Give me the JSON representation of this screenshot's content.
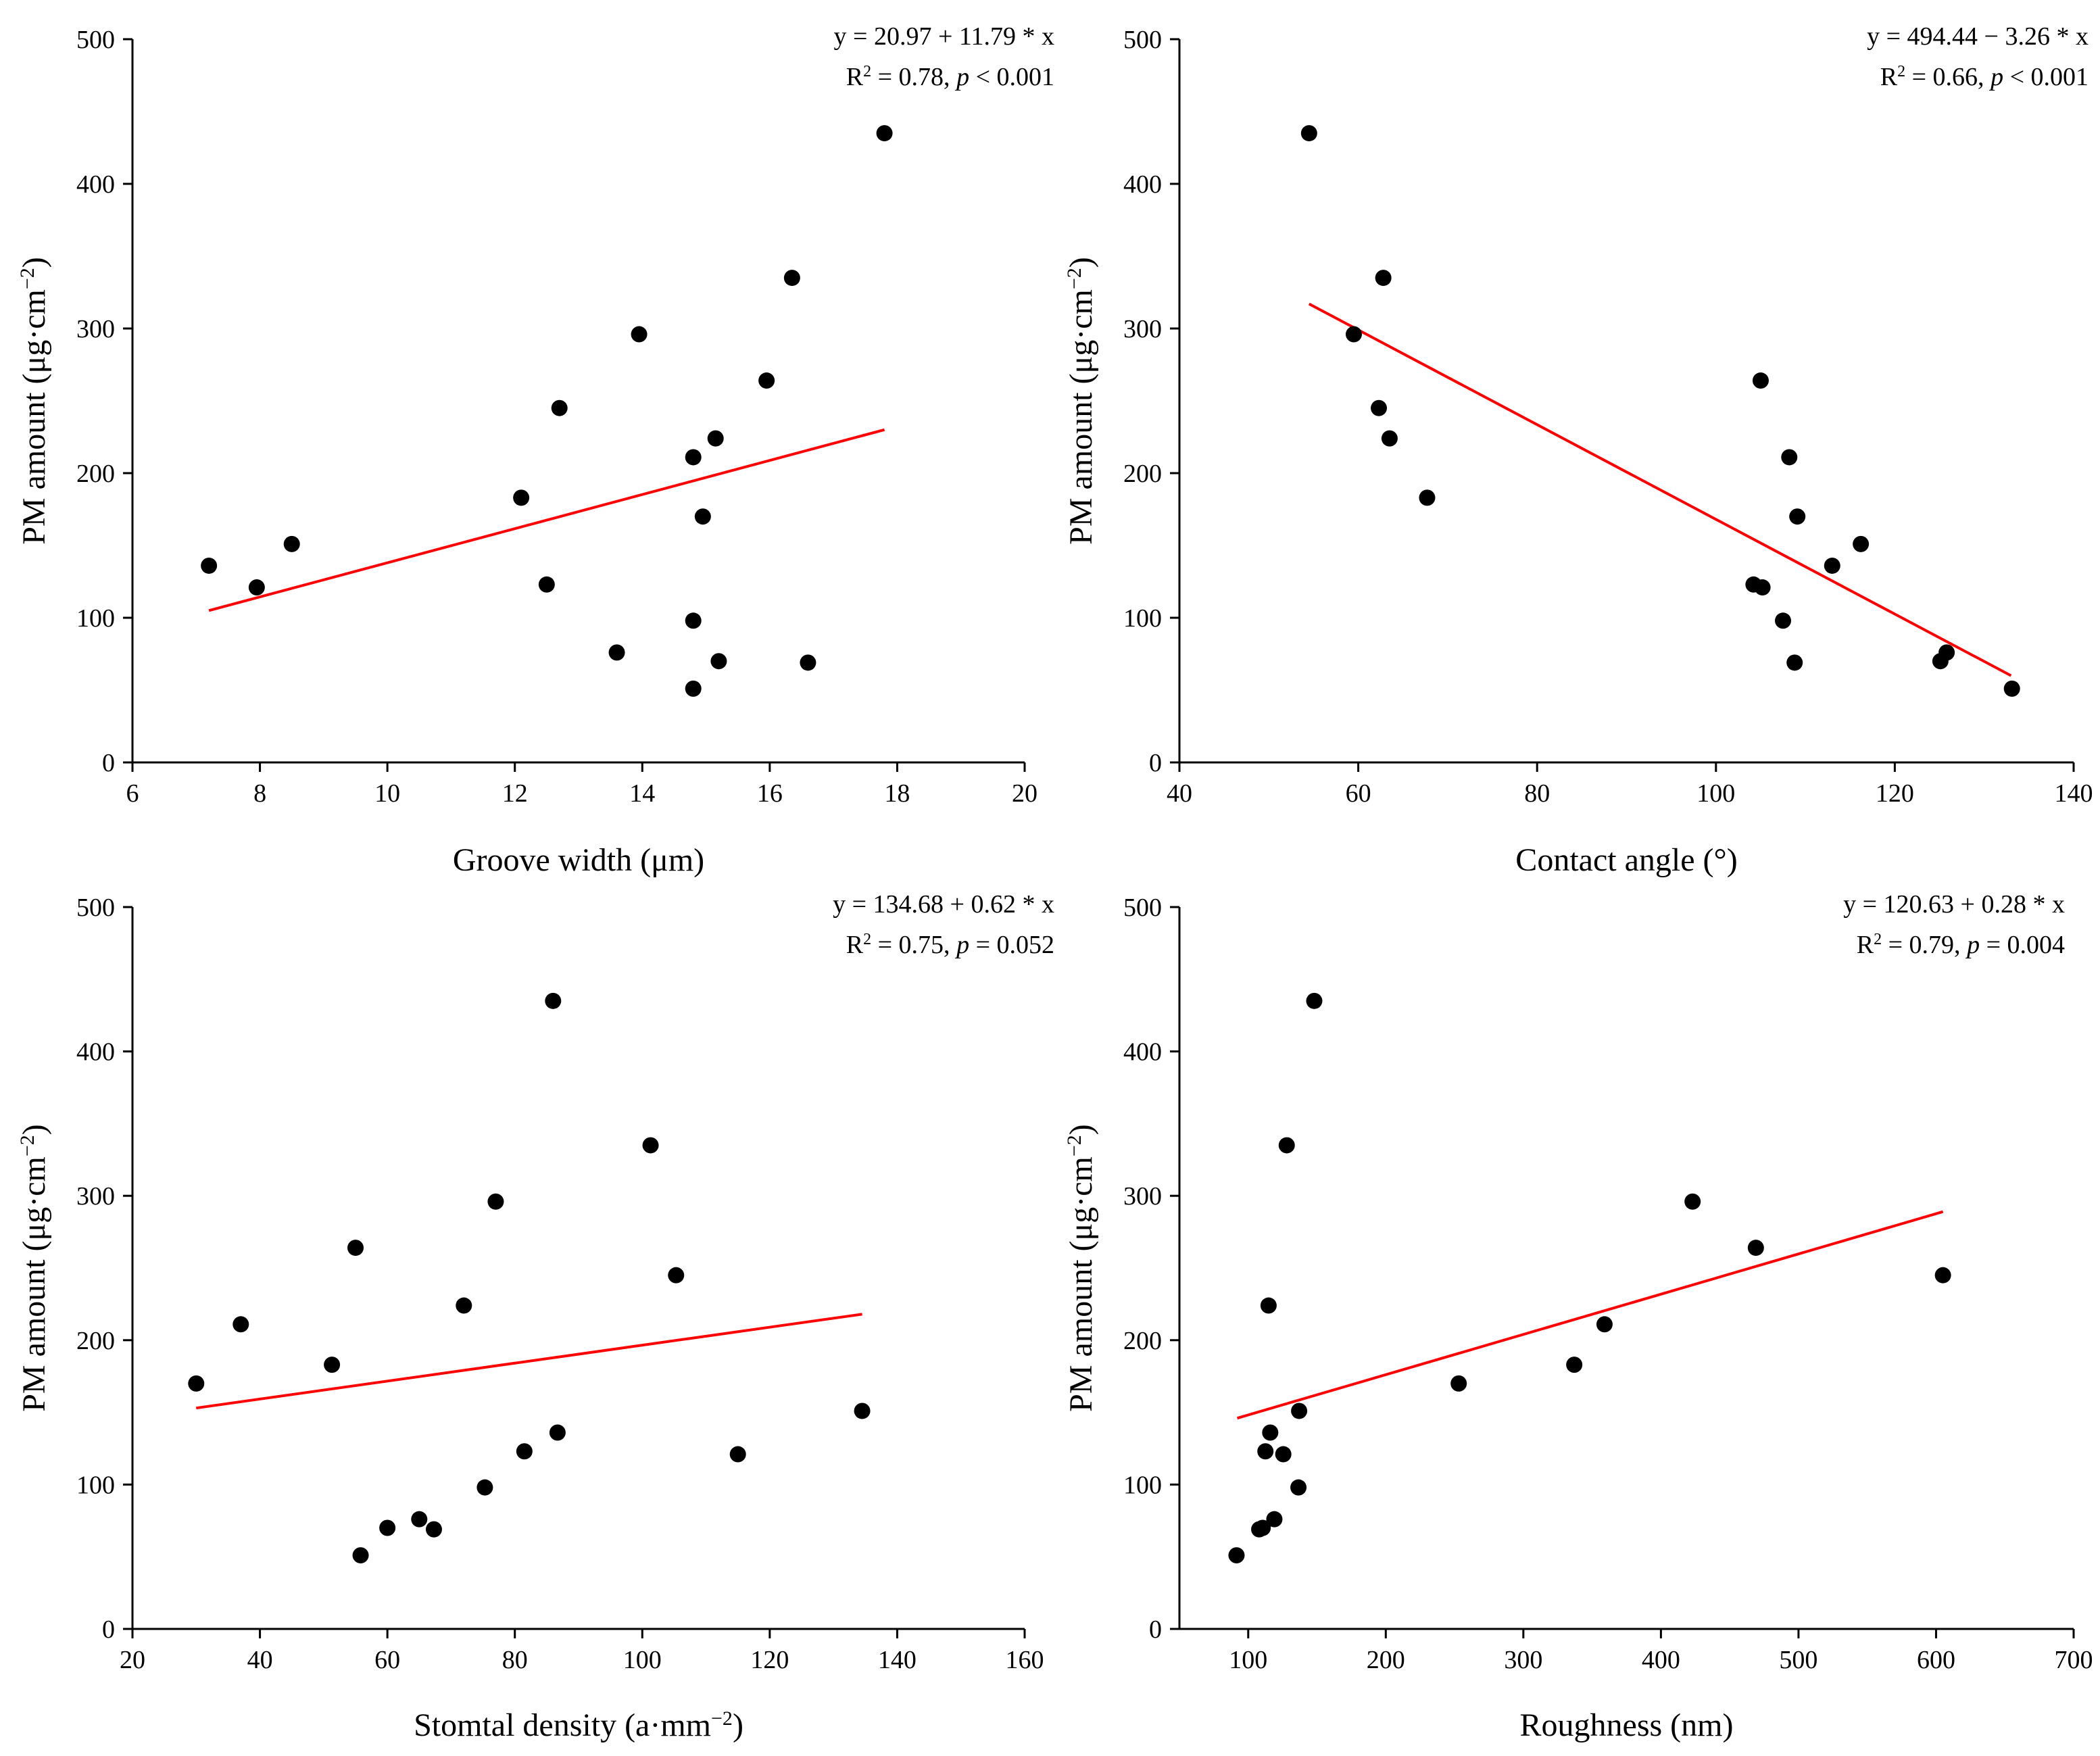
{
  "chart_data": [
    {
      "type": "scatter",
      "xlabel": "Groove width (μm)",
      "ylabel": "PM amount (μg·cm⁻²)",
      "xlim": [
        6,
        20
      ],
      "ylim": [
        0,
        500
      ],
      "xticks": [
        6,
        8,
        10,
        12,
        14,
        16,
        18,
        20
      ],
      "yticks": [
        0,
        100,
        200,
        300,
        400,
        500
      ],
      "annotation_line1": "y = 20.97 + 11.79 * x",
      "annotation_line2": "R² = 0.78, p < 0.001",
      "fit_line": [
        [
          7.2,
          105
        ],
        [
          17.8,
          230
        ]
      ],
      "x": [
        7.2,
        7.95,
        8.5,
        12.1,
        12.5,
        12.7,
        13.6,
        13.95,
        14.8,
        14.8,
        14.8,
        14.95,
        15.15,
        15.2,
        15.95,
        16.35,
        16.6,
        17.8
      ],
      "y": [
        136,
        121,
        151,
        183,
        123,
        245,
        76,
        296,
        211,
        98,
        51,
        170,
        224,
        70,
        264,
        335,
        69,
        435
      ]
    },
    {
      "type": "scatter",
      "xlabel": "Contact angle (°)",
      "ylabel": "PM amount (μg·cm⁻²)",
      "xlim": [
        40,
        140
      ],
      "ylim": [
        0,
        500
      ],
      "xticks": [
        40,
        60,
        80,
        100,
        120,
        140
      ],
      "yticks": [
        0,
        100,
        200,
        300,
        400,
        500
      ],
      "annotation_line1": "y = 494.44 − 3.26 * x",
      "annotation_line2": "R² = 0.66, p < 0.001",
      "fit_line": [
        [
          54.5,
          317
        ],
        [
          133,
          60
        ]
      ],
      "x": [
        54.5,
        59.5,
        62.3,
        62.8,
        63.5,
        67.7,
        104.2,
        105,
        105.2,
        107.5,
        108.2,
        108.8,
        109.1,
        113,
        116.2,
        125.1,
        125.8,
        133.1
      ],
      "y": [
        435,
        296,
        245,
        335,
        224,
        183,
        123,
        264,
        121,
        98,
        211,
        69,
        170,
        136,
        151,
        70,
        76,
        51
      ]
    },
    {
      "type": "scatter",
      "xlabel": "Stomtal density (a·mm⁻²)",
      "ylabel": "PM amount (μg·cm⁻²)",
      "xlim": [
        20,
        160
      ],
      "ylim": [
        0,
        500
      ],
      "xticks": [
        20,
        40,
        60,
        80,
        100,
        120,
        140,
        160
      ],
      "yticks": [
        0,
        100,
        200,
        300,
        400,
        500
      ],
      "annotation_line1": "y = 134.68 + 0.62 * x",
      "annotation_line2": "R² = 0.75, p = 0.052",
      "fit_line": [
        [
          30,
          153
        ],
        [
          134.5,
          218
        ]
      ],
      "x": [
        30,
        37,
        51.3,
        55,
        55.8,
        60,
        65,
        67.3,
        72,
        75.3,
        77,
        81.5,
        86,
        86.7,
        101.3,
        105.3,
        115,
        134.5
      ],
      "y": [
        170,
        211,
        183,
        264,
        51,
        70,
        76,
        69,
        224,
        98,
        296,
        123,
        435,
        136,
        335,
        245,
        121,
        151
      ]
    },
    {
      "type": "scatter",
      "xlabel": "Roughness (nm)",
      "ylabel": "PM amount (μg·cm⁻²)",
      "xlim": [
        50,
        700
      ],
      "ylim": [
        0,
        500
      ],
      "xticks": [
        100,
        200,
        300,
        400,
        500,
        600,
        700
      ],
      "yticks": [
        0,
        100,
        200,
        300,
        400,
        500
      ],
      "annotation_line1": "y = 120.63 + 0.28 * x",
      "annotation_line2": "R² = 0.79, p = 0.004",
      "fit_line": [
        [
          92,
          146
        ],
        [
          605,
          289
        ]
      ],
      "x": [
        91.5,
        108,
        110.5,
        112.5,
        114.8,
        116,
        119,
        125.5,
        128,
        136.5,
        137,
        148,
        253,
        337,
        359,
        423,
        469,
        605
      ],
      "y": [
        51,
        69,
        70,
        123,
        224,
        136,
        76,
        121,
        335,
        98,
        151,
        435,
        170,
        183,
        211,
        296,
        264,
        245
      ]
    }
  ]
}
